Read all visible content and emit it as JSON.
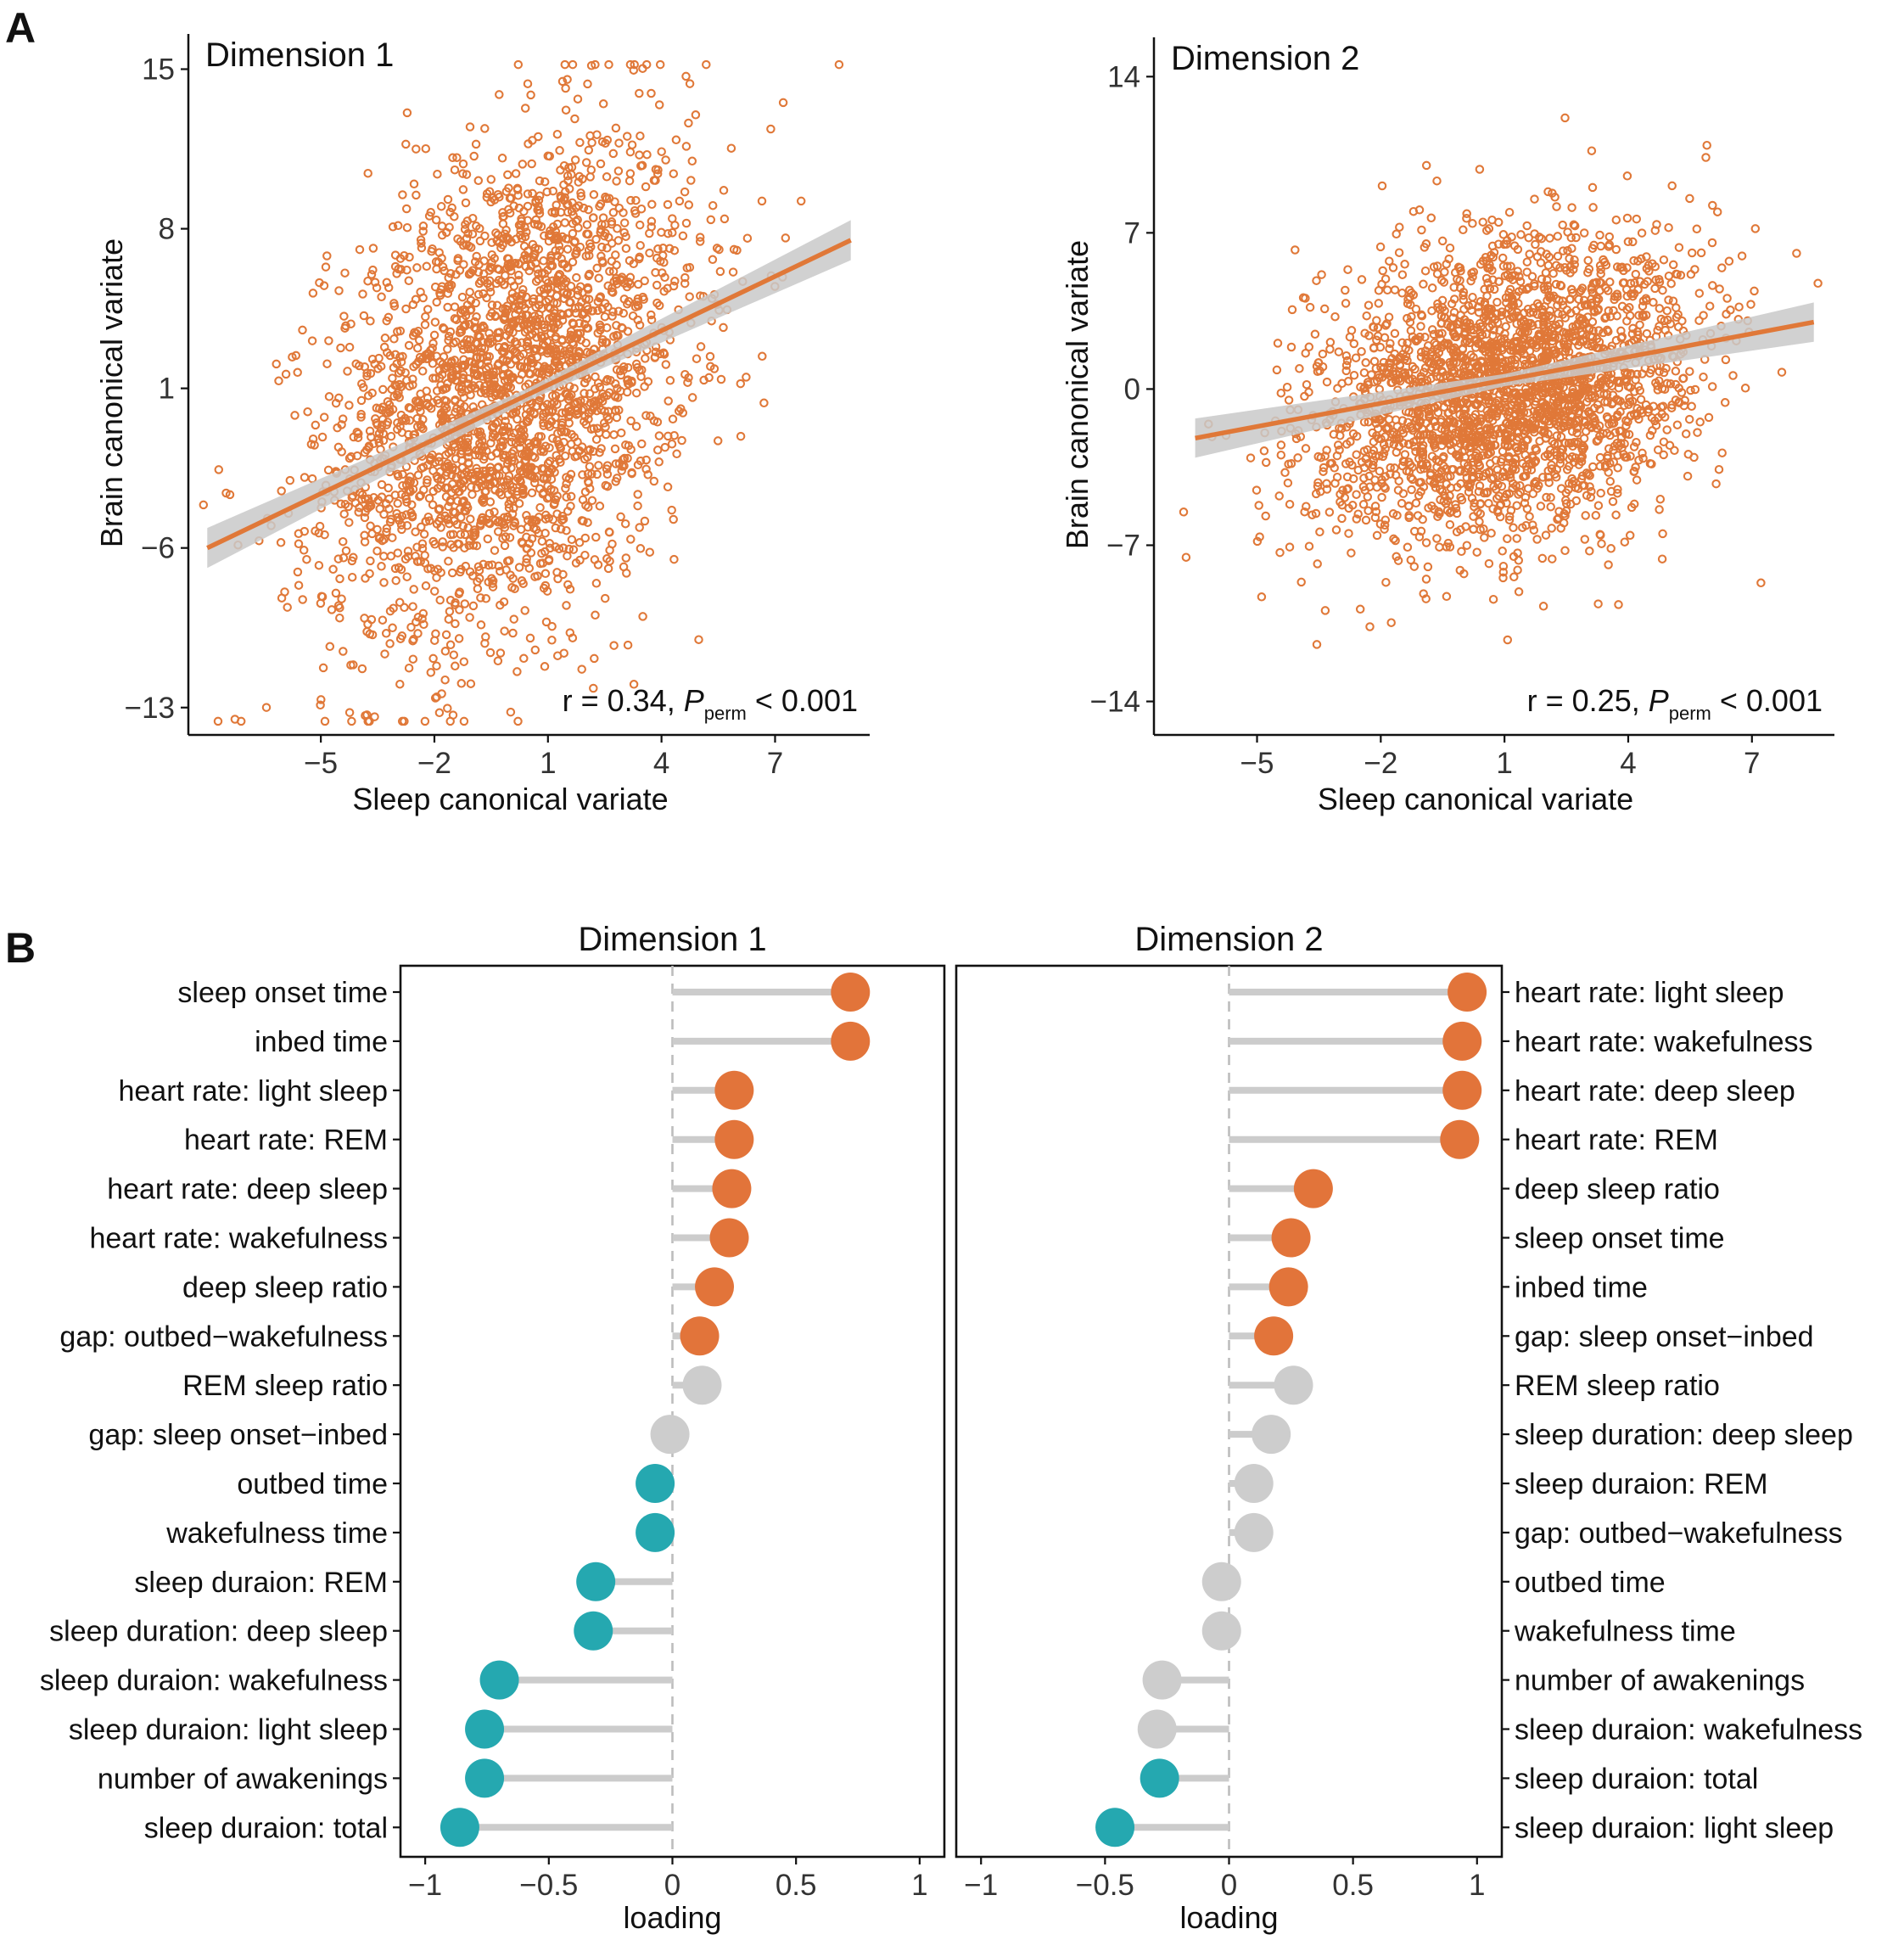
{
  "panel_a_label": "A",
  "panel_b_label": "B",
  "chart_data": [
    {
      "type": "scatter",
      "id": "A1",
      "title": "Dimension 1",
      "xlabel": "Sleep canonical variate",
      "ylabel": "Brain canonical variate",
      "xlim": [
        -8.5,
        9.5
      ],
      "ylim": [
        -14.2,
        15.8
      ],
      "xticks": [
        -5,
        -2,
        1,
        4,
        7
      ],
      "xticklabels": [
        "−5",
        "−2",
        "1",
        "4",
        "7"
      ],
      "yticks": [
        15,
        8,
        1,
        -6,
        -13
      ],
      "yticklabels": [
        "15",
        "8",
        "1",
        "−6",
        "−13"
      ],
      "n_points": 2600,
      "x_mean": 0.0,
      "x_sd": 2.4,
      "y_mean": 1.0,
      "y_sd": 5.5,
      "r": 0.34,
      "fit_line": {
        "x": [
          -8.0,
          9.0
        ],
        "y": [
          -6.0,
          7.5
        ]
      },
      "color": "#E07838",
      "annotation": {
        "r_text": "r = 0.34, ",
        "p_symbol": "P",
        "p_sub": "perm",
        "p_rest": " < 0.001"
      }
    },
    {
      "type": "scatter",
      "id": "A2",
      "title": "Dimension 2",
      "xlabel": "Sleep canonical variate",
      "ylabel": "Brain canonical variate",
      "xlim": [
        -7.5,
        9.0
      ],
      "ylim": [
        -15.5,
        15.0
      ],
      "xticks": [
        -5,
        -2,
        1,
        4,
        7
      ],
      "xticklabels": [
        "−5",
        "−2",
        "1",
        "4",
        "7"
      ],
      "yticks": [
        14,
        7,
        0,
        -7,
        -14
      ],
      "yticklabels": [
        "14",
        "7",
        "0",
        "−7",
        "−14"
      ],
      "n_points": 2600,
      "x_mean": 1.0,
      "x_sd": 2.3,
      "y_mean": 0.0,
      "y_sd": 3.4,
      "r": 0.25,
      "fit_line": {
        "x": [
          -6.5,
          8.5
        ],
        "y": [
          -2.2,
          3.0
        ]
      },
      "color": "#E07838",
      "annotation": {
        "r_text": "r = 0.25, ",
        "p_symbol": "P",
        "p_sub": "perm",
        "p_rest": " < 0.001"
      }
    },
    {
      "type": "lollipop",
      "id": "B1",
      "title": "Dimension 1",
      "xlabel": "loading",
      "xlim": [
        -1.1,
        1.1
      ],
      "xticks": [
        -1,
        -0.5,
        0,
        0.5,
        1
      ],
      "xticklabels": [
        "−1",
        "−0.5",
        "0",
        "0.5",
        "1"
      ],
      "label_side": "left",
      "items": [
        {
          "label": "sleep onset time",
          "value": 0.72,
          "group": "pos"
        },
        {
          "label": "inbed time",
          "value": 0.72,
          "group": "pos"
        },
        {
          "label": "heart rate: light sleep",
          "value": 0.25,
          "group": "pos"
        },
        {
          "label": "heart rate: REM",
          "value": 0.25,
          "group": "pos"
        },
        {
          "label": "heart rate: deep sleep",
          "value": 0.24,
          "group": "pos"
        },
        {
          "label": "heart rate: wakefulness",
          "value": 0.23,
          "group": "pos"
        },
        {
          "label": "deep sleep ratio",
          "value": 0.17,
          "group": "pos"
        },
        {
          "label": "gap: outbed−wakefulness",
          "value": 0.11,
          "group": "pos"
        },
        {
          "label": "REM sleep ratio",
          "value": 0.12,
          "group": "ns"
        },
        {
          "label": "gap: sleep onset−inbed",
          "value": -0.01,
          "group": "ns"
        },
        {
          "label": "outbed time",
          "value": -0.07,
          "group": "neg"
        },
        {
          "label": "wakefulness time",
          "value": -0.07,
          "group": "neg"
        },
        {
          "label": "sleep duraion: REM",
          "value": -0.31,
          "group": "neg"
        },
        {
          "label": "sleep duration: deep sleep",
          "value": -0.32,
          "group": "neg"
        },
        {
          "label": "sleep duraion: wakefulness",
          "value": -0.7,
          "group": "neg"
        },
        {
          "label": "sleep duraion: light sleep",
          "value": -0.76,
          "group": "neg"
        },
        {
          "label": "number of awakenings",
          "value": -0.76,
          "group": "neg"
        },
        {
          "label": "sleep duraion: total",
          "value": -0.86,
          "group": "neg"
        }
      ]
    },
    {
      "type": "lollipop",
      "id": "B2",
      "title": "Dimension 2",
      "xlabel": "loading",
      "xlim": [
        -1.1,
        1.1
      ],
      "xticks": [
        -1,
        -0.5,
        0,
        0.5,
        1
      ],
      "xticklabels": [
        "−1",
        "−0.5",
        "0",
        "0.5",
        "1"
      ],
      "label_side": "right",
      "items": [
        {
          "label": "heart rate: light sleep",
          "value": 0.96,
          "group": "pos"
        },
        {
          "label": "heart rate: wakefulness",
          "value": 0.94,
          "group": "pos"
        },
        {
          "label": "heart rate: deep sleep",
          "value": 0.94,
          "group": "pos"
        },
        {
          "label": "heart rate: REM",
          "value": 0.93,
          "group": "pos"
        },
        {
          "label": "deep sleep ratio",
          "value": 0.34,
          "group": "pos"
        },
        {
          "label": "sleep onset time",
          "value": 0.25,
          "group": "pos"
        },
        {
          "label": "inbed time",
          "value": 0.24,
          "group": "pos"
        },
        {
          "label": "gap: sleep onset−inbed",
          "value": 0.18,
          "group": "pos"
        },
        {
          "label": "REM sleep ratio",
          "value": 0.26,
          "group": "ns"
        },
        {
          "label": "sleep duration: deep sleep",
          "value": 0.17,
          "group": "ns"
        },
        {
          "label": "sleep duraion: REM",
          "value": 0.1,
          "group": "ns"
        },
        {
          "label": "gap: outbed−wakefulness",
          "value": 0.1,
          "group": "ns"
        },
        {
          "label": "outbed time",
          "value": -0.03,
          "group": "ns"
        },
        {
          "label": "wakefulness time",
          "value": -0.03,
          "group": "ns"
        },
        {
          "label": "number of awakenings",
          "value": -0.27,
          "group": "ns"
        },
        {
          "label": "sleep duraion: wakefulness",
          "value": -0.29,
          "group": "ns"
        },
        {
          "label": "sleep duraion: total",
          "value": -0.28,
          "group": "neg"
        },
        {
          "label": "sleep duraion: light sleep",
          "value": -0.46,
          "group": "neg"
        }
      ]
    }
  ],
  "colors": {
    "pos": "#E2743A",
    "neg": "#25A8B0",
    "ns": "#CDCDCD",
    "stem": "#CCCCCC",
    "fit": "#E07838",
    "ci": "#C9C9C9"
  }
}
